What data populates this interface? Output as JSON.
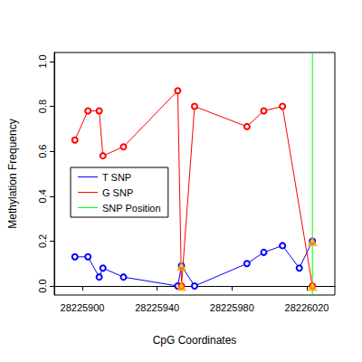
{
  "chart_data": {
    "type": "line",
    "x_label": "CpG Coordinates",
    "y_label": "Methylation Frequency",
    "x": [
      28225896,
      28225903,
      28225909,
      28225911,
      28225922,
      28225951,
      28225953,
      28225960,
      28225988,
      28225997,
      28226007,
      28226016,
      28226023
    ],
    "series": [
      {
        "name": "T SNP",
        "color": "#0000FF",
        "marker": "circle",
        "values": [
          0.13,
          0.13,
          0.04,
          0.08,
          0.04,
          0.0,
          0.09,
          0.0,
          0.1,
          0.15,
          0.18,
          0.08,
          0.2
        ]
      },
      {
        "name": "G SNP",
        "color": "#FF0000",
        "marker": "circle",
        "values": [
          0.65,
          0.78,
          0.78,
          0.58,
          0.62,
          0.87,
          0.0,
          0.8,
          0.71,
          0.78,
          0.8,
          null,
          0.0
        ]
      },
      {
        "name": "SNP Position",
        "color": "#00FF00",
        "type": "vline",
        "x": 28226023
      }
    ],
    "highlight_points": {
      "color": "#FFA500",
      "marker": "triangle",
      "x": [
        28225953,
        28225953,
        28226023,
        28226023
      ],
      "y": [
        0.09,
        0.0,
        0.2,
        0.0
      ]
    },
    "xlim": [
      28225885,
      28226035
    ],
    "xticks": [
      28225900,
      28225940,
      28225980,
      28226020
    ],
    "ylim": [
      -0.04,
      1.04
    ],
    "yticks": [
      {
        "value": 0,
        "label": "0.0"
      },
      {
        "value": 0.2,
        "label": "0.2"
      },
      {
        "value": 0.4,
        "label": "0.4"
      },
      {
        "value": 0.6,
        "label": "0.6"
      },
      {
        "value": 0.8,
        "label": "0.8"
      },
      {
        "value": 1,
        "label": "1.0"
      }
    ],
    "legend": "left",
    "grid": false
  }
}
